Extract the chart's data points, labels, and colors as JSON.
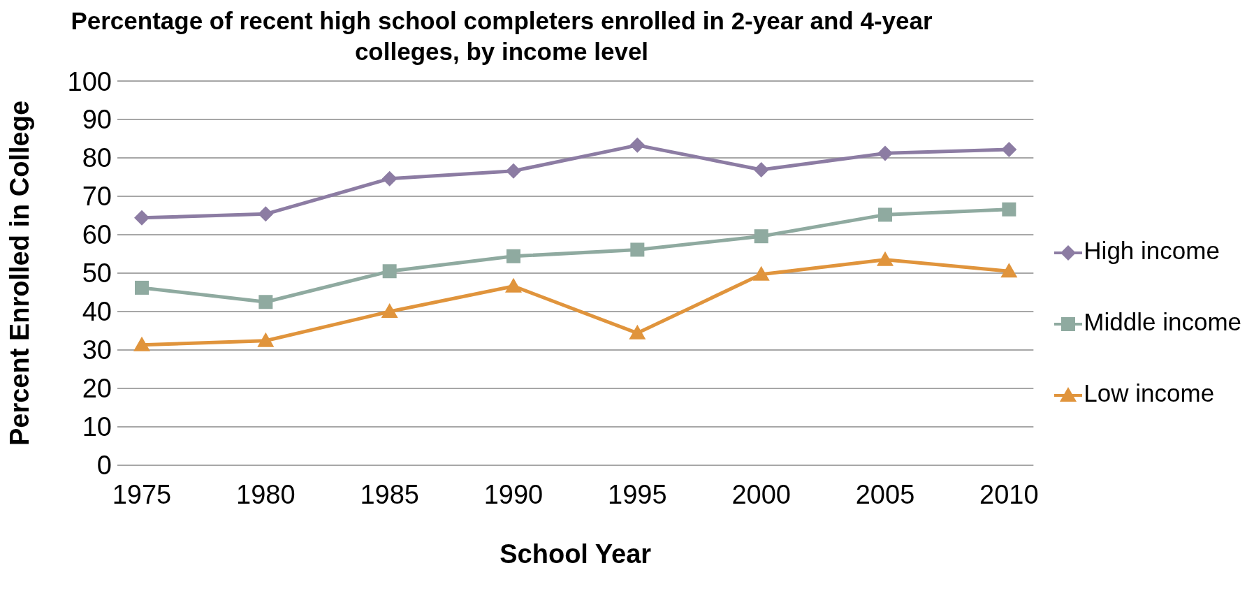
{
  "chart_data": {
    "type": "line",
    "title": "Percentage of recent high school completers enrolled in 2-year and 4-year colleges, by income level",
    "xlabel": "School Year",
    "ylabel": "Percent Enrolled in College",
    "categories": [
      "1975",
      "1980",
      "1985",
      "1990",
      "1995",
      "2000",
      "2005",
      "2010"
    ],
    "series": [
      {
        "name": "High income",
        "color": "#8c7ca3",
        "marker": "diamond",
        "values": [
          64.4,
          65.4,
          74.6,
          76.6,
          83.3,
          76.9,
          81.2,
          82.2
        ]
      },
      {
        "name": "Middle income",
        "color": "#8faaa0",
        "marker": "square",
        "values": [
          46.2,
          42.5,
          50.5,
          54.4,
          56.1,
          59.6,
          65.2,
          66.6
        ]
      },
      {
        "name": "Low income",
        "color": "#e0943c",
        "marker": "triangle",
        "values": [
          31.3,
          32.4,
          40.0,
          46.6,
          34.4,
          49.7,
          53.5,
          50.5
        ]
      }
    ],
    "ylim": [
      0,
      100
    ],
    "yticks": [
      0,
      10,
      20,
      30,
      40,
      50,
      60,
      70,
      80,
      90,
      100
    ],
    "grid": "y",
    "legend": "right",
    "line_style": "solid"
  }
}
